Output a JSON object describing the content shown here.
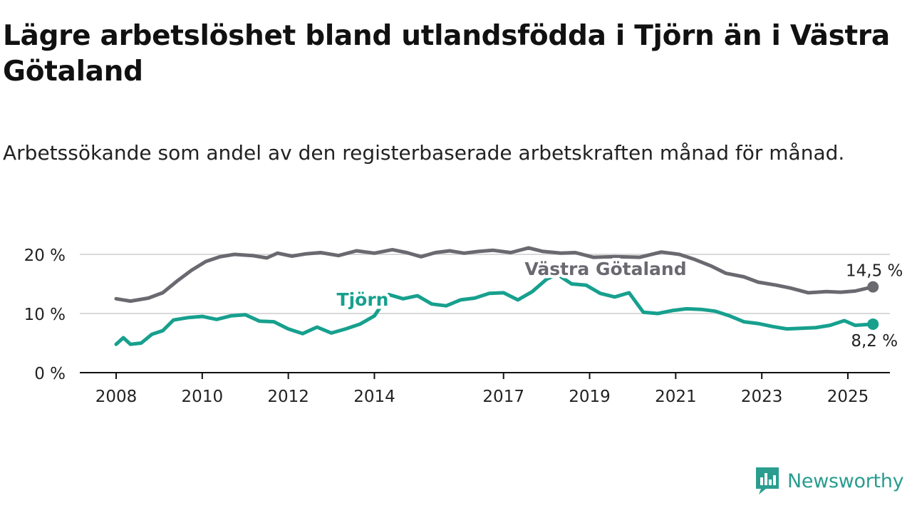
{
  "title": "Lägre arbetslöshet bland utlandsfödda i Tjörn än i Västra Götaland",
  "subtitle": "Arbetssökande som andel av den registerbaserade arbetskraften månad för månad.",
  "brand": {
    "name": "Newsworthy",
    "icon": "bar-chart-speech-icon",
    "color": "#2a9d8f"
  },
  "chart_data": {
    "type": "line",
    "xlabel": "",
    "ylabel": "",
    "x_ticks": [
      "2008",
      "2010",
      "2012",
      "2014",
      "2017",
      "2019",
      "2021",
      "2023",
      "2025"
    ],
    "y_ticks": [
      "0 %",
      "10 %",
      "20 %"
    ],
    "y_tick_values": [
      0,
      10,
      20
    ],
    "ylim": [
      0,
      20
    ],
    "grid": true,
    "series": [
      {
        "name": "Västra Götaland",
        "color": "#6b6970",
        "end_label": "14,5 %",
        "points": [
          [
            "2008-01",
            12.5
          ],
          [
            "2008-05",
            12.1
          ],
          [
            "2008-10",
            12.6
          ],
          [
            "2009-02",
            13.5
          ],
          [
            "2009-06",
            15.5
          ],
          [
            "2009-10",
            17.3
          ],
          [
            "2010-02",
            18.8
          ],
          [
            "2010-06",
            19.6
          ],
          [
            "2010-10",
            20.0
          ],
          [
            "2011-03",
            19.8
          ],
          [
            "2011-07",
            19.4
          ],
          [
            "2011-10",
            20.2
          ],
          [
            "2012-02",
            19.7
          ],
          [
            "2012-06",
            20.1
          ],
          [
            "2012-10",
            20.3
          ],
          [
            "2013-03",
            19.8
          ],
          [
            "2013-08",
            20.6
          ],
          [
            "2014-01",
            20.2
          ],
          [
            "2014-06",
            20.8
          ],
          [
            "2014-10",
            20.3
          ],
          [
            "2015-02",
            19.6
          ],
          [
            "2015-06",
            20.3
          ],
          [
            "2015-10",
            20.6
          ],
          [
            "2016-02",
            20.2
          ],
          [
            "2016-06",
            20.5
          ],
          [
            "2016-10",
            20.7
          ],
          [
            "2017-03",
            20.3
          ],
          [
            "2017-08",
            21.1
          ],
          [
            "2017-12",
            20.5
          ],
          [
            "2018-05",
            20.2
          ],
          [
            "2018-09",
            20.3
          ],
          [
            "2019-02",
            19.5
          ],
          [
            "2019-08",
            19.6
          ],
          [
            "2020-03",
            19.5
          ],
          [
            "2020-09",
            20.4
          ],
          [
            "2021-02",
            20.0
          ],
          [
            "2021-06",
            19.2
          ],
          [
            "2021-11",
            18.0
          ],
          [
            "2022-03",
            16.8
          ],
          [
            "2022-08",
            16.2
          ],
          [
            "2022-12",
            15.3
          ],
          [
            "2023-05",
            14.8
          ],
          [
            "2023-09",
            14.3
          ],
          [
            "2024-02",
            13.5
          ],
          [
            "2024-07",
            13.7
          ],
          [
            "2024-11",
            13.6
          ],
          [
            "2025-03",
            13.8
          ],
          [
            "2025-08",
            14.5
          ]
        ]
      },
      {
        "name": "Tjörn",
        "color": "#17a08e",
        "end_label": "8,2 %",
        "points": [
          [
            "2008-01",
            4.8
          ],
          [
            "2008-03",
            5.9
          ],
          [
            "2008-05",
            4.8
          ],
          [
            "2008-08",
            5.0
          ],
          [
            "2008-11",
            6.5
          ],
          [
            "2009-02",
            7.1
          ],
          [
            "2009-05",
            8.9
          ],
          [
            "2009-09",
            9.3
          ],
          [
            "2010-01",
            9.5
          ],
          [
            "2010-05",
            9.0
          ],
          [
            "2010-09",
            9.6
          ],
          [
            "2011-01",
            9.8
          ],
          [
            "2011-05",
            8.7
          ],
          [
            "2011-09",
            8.6
          ],
          [
            "2012-01",
            7.4
          ],
          [
            "2012-05",
            6.6
          ],
          [
            "2012-09",
            7.7
          ],
          [
            "2013-01",
            6.7
          ],
          [
            "2013-05",
            7.4
          ],
          [
            "2013-09",
            8.2
          ],
          [
            "2014-01",
            9.6
          ],
          [
            "2014-05",
            13.2
          ],
          [
            "2014-09",
            12.5
          ],
          [
            "2015-01",
            13.0
          ],
          [
            "2015-05",
            11.6
          ],
          [
            "2015-09",
            11.3
          ],
          [
            "2016-01",
            12.3
          ],
          [
            "2016-05",
            12.6
          ],
          [
            "2016-09",
            13.4
          ],
          [
            "2017-01",
            13.5
          ],
          [
            "2017-05",
            12.3
          ],
          [
            "2017-09",
            13.7
          ],
          [
            "2018-01",
            15.8
          ],
          [
            "2018-04",
            16.6
          ],
          [
            "2018-08",
            15.0
          ],
          [
            "2018-12",
            14.8
          ],
          [
            "2019-04",
            13.4
          ],
          [
            "2019-08",
            12.8
          ],
          [
            "2019-12",
            13.5
          ],
          [
            "2020-04",
            10.2
          ],
          [
            "2020-08",
            10.0
          ],
          [
            "2020-12",
            10.5
          ],
          [
            "2021-04",
            10.8
          ],
          [
            "2021-08",
            10.7
          ],
          [
            "2021-12",
            10.4
          ],
          [
            "2022-04",
            9.6
          ],
          [
            "2022-08",
            8.6
          ],
          [
            "2022-12",
            8.3
          ],
          [
            "2023-04",
            7.8
          ],
          [
            "2023-08",
            7.4
          ],
          [
            "2023-12",
            7.5
          ],
          [
            "2024-04",
            7.6
          ],
          [
            "2024-08",
            8.0
          ],
          [
            "2024-12",
            8.8
          ],
          [
            "2025-03",
            8.0
          ],
          [
            "2025-08",
            8.2
          ]
        ]
      }
    ]
  }
}
